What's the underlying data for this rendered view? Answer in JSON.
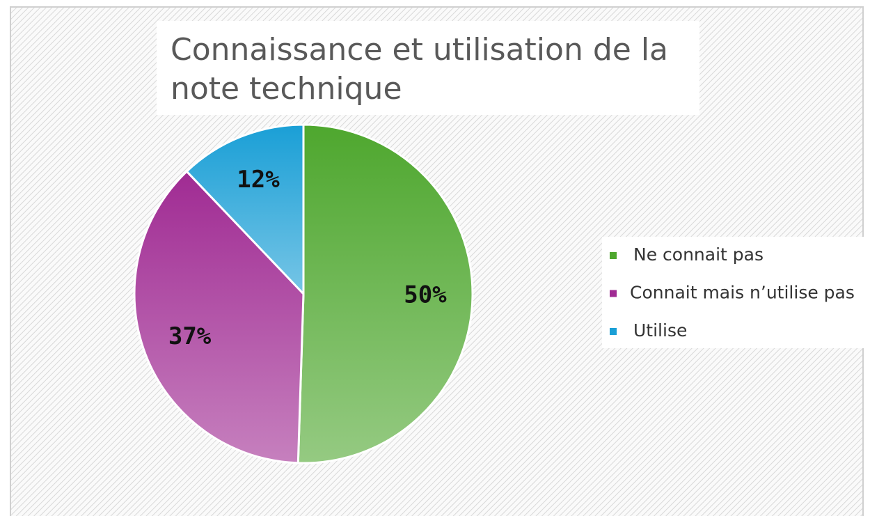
{
  "chart_data": {
    "type": "pie",
    "title": "Connaissance et utilisation de la note technique",
    "categories": [
      "Ne connait pas",
      "Connait mais n’utilise pas",
      "Utilise"
    ],
    "values": [
      50,
      37,
      12
    ],
    "value_labels": [
      "50%",
      "37%",
      "12%"
    ],
    "colors": [
      "#4ea72e",
      "#a02b93",
      "#1a9fd6"
    ],
    "legend": "right"
  }
}
